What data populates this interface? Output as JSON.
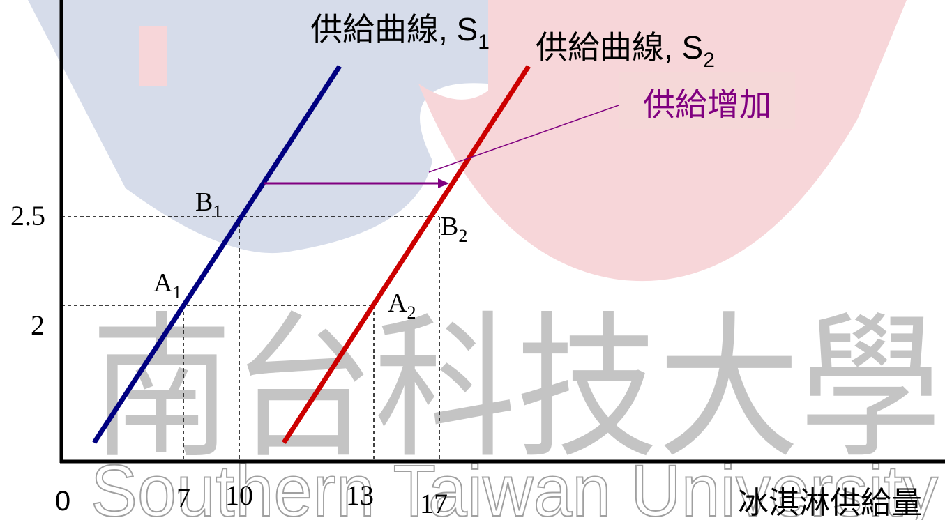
{
  "watermark": {
    "chinese": "南台科技大學",
    "english": "Southern Taiwan University"
  },
  "curves": [
    {
      "label": "供給曲線, S",
      "sub": "1"
    },
    {
      "label": "供給曲線, S",
      "sub": "2"
    }
  ],
  "shift_label": "供給增加",
  "points": [
    {
      "label": "A",
      "sub": "1"
    },
    {
      "label": "B",
      "sub": "1"
    },
    {
      "label": "A",
      "sub": "2"
    },
    {
      "label": "B",
      "sub": "2"
    }
  ],
  "y_axis": {
    "ticks": [
      "2.5",
      "2"
    ]
  },
  "x_axis": {
    "origin": "0",
    "ticks": [
      "7",
      "10",
      "13",
      "17"
    ],
    "label": "冰淇淋供給量"
  }
}
